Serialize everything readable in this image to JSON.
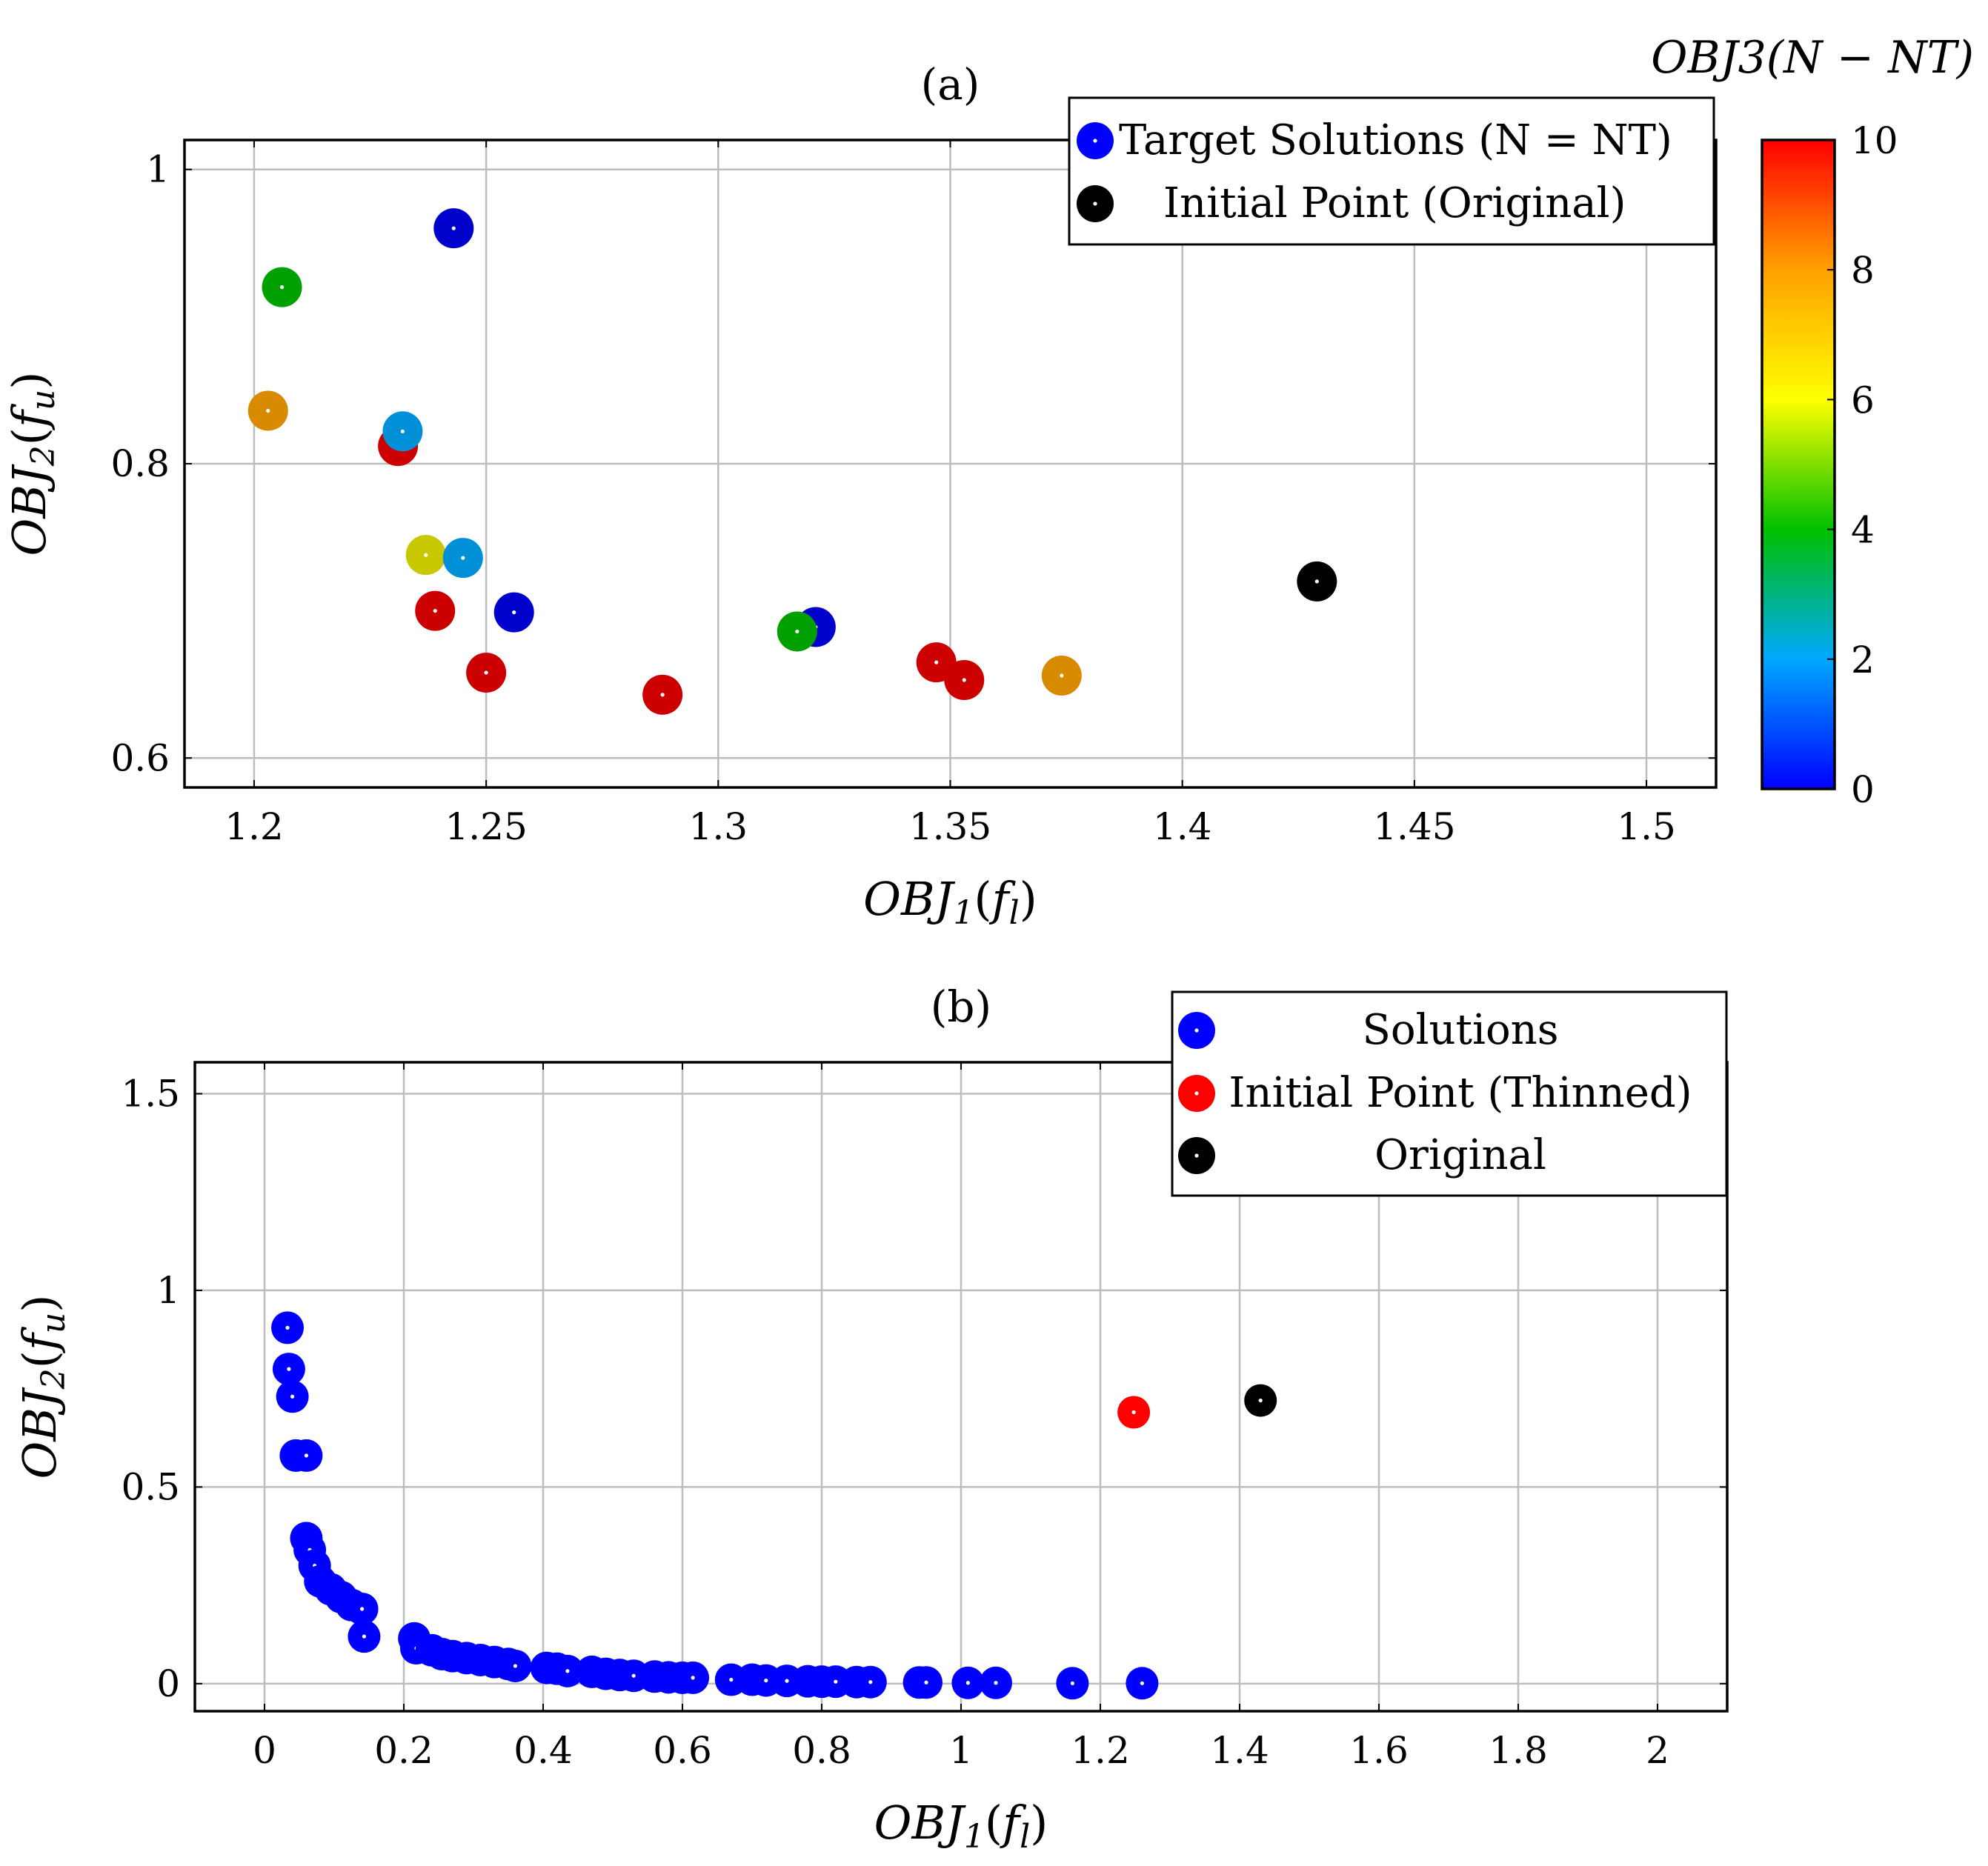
{
  "chart_data": [
    {
      "id": "a",
      "type": "scatter",
      "title": "(a)",
      "xlabel": "OBJ1(fl)",
      "ylabel": "OBJ2(fu)",
      "xlim": [
        1.185,
        1.515
      ],
      "ylim": [
        0.58,
        1.02
      ],
      "xticks": [
        1.2,
        1.25,
        1.3,
        1.35,
        1.4,
        1.45,
        1.5
      ],
      "xtick_labels": [
        "1.2",
        "1.25",
        "1.3",
        "1.35",
        "1.4",
        "1.45",
        "1.5"
      ],
      "yticks": [
        0.6,
        0.8,
        1.0
      ],
      "ytick_labels": [
        "0.6",
        "0.8",
        "1"
      ],
      "colorbar": {
        "title": "OBJ3(N − NT)",
        "range": [
          0,
          10
        ],
        "ticks": [
          0,
          2,
          4,
          6,
          8,
          10
        ],
        "tick_labels": [
          "0",
          "2",
          "4",
          "6",
          "8",
          "10"
        ],
        "stops": [
          "#0000ff",
          "#00a8ff",
          "#00c000",
          "#ffff00",
          "#ffa000",
          "#ff0000"
        ]
      },
      "legend": {
        "placement": "top-right",
        "entries": [
          {
            "label": "Target Solutions (N = NT)",
            "color": "#0000ff"
          },
          {
            "label": "Initial Point (Original)",
            "color": "#000000"
          }
        ]
      },
      "series": [
        {
          "name": "Target Solutions (N = NT)",
          "points": [
            {
              "x": 1.243,
              "y": 0.96,
              "c": 0,
              "color": "#0000cc"
            },
            {
              "x": 1.206,
              "y": 0.92,
              "c": 4,
              "color": "#00a000"
            },
            {
              "x": 1.203,
              "y": 0.836,
              "c": 8,
              "color": "#d88a00"
            },
            {
              "x": 1.231,
              "y": 0.812,
              "c": 10,
              "color": "#cc0000"
            },
            {
              "x": 1.232,
              "y": 0.822,
              "c": 2,
              "color": "#0090d8"
            },
            {
              "x": 1.237,
              "y": 0.738,
              "c": 6,
              "color": "#c8c800"
            },
            {
              "x": 1.245,
              "y": 0.736,
              "c": 2,
              "color": "#0090d8"
            },
            {
              "x": 1.239,
              "y": 0.7,
              "c": 10,
              "color": "#cc0000"
            },
            {
              "x": 1.256,
              "y": 0.699,
              "c": 0,
              "color": "#0000cc"
            },
            {
              "x": 1.25,
              "y": 0.658,
              "c": 10,
              "color": "#cc0000"
            },
            {
              "x": 1.288,
              "y": 0.643,
              "c": 10,
              "color": "#cc0000"
            },
            {
              "x": 1.321,
              "y": 0.689,
              "c": 0,
              "color": "#0000cc"
            },
            {
              "x": 1.317,
              "y": 0.686,
              "c": 4,
              "color": "#00a000"
            },
            {
              "x": 1.347,
              "y": 0.665,
              "c": 10,
              "color": "#cc0000"
            },
            {
              "x": 1.353,
              "y": 0.653,
              "c": 10,
              "color": "#cc0000"
            },
            {
              "x": 1.374,
              "y": 0.656,
              "c": 8,
              "color": "#d88a00"
            }
          ]
        },
        {
          "name": "Initial Point (Original)",
          "points": [
            {
              "x": 1.429,
              "y": 0.72,
              "color": "#000000"
            }
          ]
        }
      ]
    },
    {
      "id": "b",
      "type": "scatter",
      "title": "(b)",
      "xlabel": "OBJ1(fl)",
      "ylabel": "OBJ2(fu)",
      "xlim": [
        -0.1,
        2.1
      ],
      "ylim": [
        -0.07,
        1.58
      ],
      "xticks": [
        0,
        0.2,
        0.4,
        0.6,
        0.8,
        1,
        1.2,
        1.4,
        1.6,
        1.8,
        2
      ],
      "xtick_labels": [
        "0",
        "0.2",
        "0.4",
        "0.6",
        "0.8",
        "1",
        "1.2",
        "1.4",
        "1.6",
        "1.8",
        "2"
      ],
      "yticks": [
        0,
        0.5,
        1,
        1.5
      ],
      "ytick_labels": [
        "0",
        "0.5",
        "1",
        "1.5"
      ],
      "legend": {
        "placement": "top-right",
        "entries": [
          {
            "label": "Solutions",
            "color": "#0000ff"
          },
          {
            "label": "Initial Point (Thinned)",
            "color": "#ff0000"
          },
          {
            "label": "Original",
            "color": "#000000"
          }
        ]
      },
      "series": [
        {
          "name": "Solutions",
          "color": "#0000ff",
          "points": [
            [
              0.033,
              0.905
            ],
            [
              0.035,
              0.8
            ],
            [
              0.04,
              0.73
            ],
            [
              0.045,
              0.58
            ],
            [
              0.06,
              0.58
            ],
            [
              0.06,
              0.37
            ],
            [
              0.065,
              0.34
            ],
            [
              0.072,
              0.3
            ],
            [
              0.08,
              0.26
            ],
            [
              0.095,
              0.24
            ],
            [
              0.11,
              0.22
            ],
            [
              0.125,
              0.2
            ],
            [
              0.14,
              0.19
            ],
            [
              0.143,
              0.12
            ],
            [
              0.215,
              0.115
            ],
            [
              0.218,
              0.09
            ],
            [
              0.24,
              0.085
            ],
            [
              0.255,
              0.075
            ],
            [
              0.27,
              0.07
            ],
            [
              0.29,
              0.065
            ],
            [
              0.31,
              0.06
            ],
            [
              0.33,
              0.055
            ],
            [
              0.35,
              0.05
            ],
            [
              0.36,
              0.045
            ],
            [
              0.405,
              0.04
            ],
            [
              0.42,
              0.038
            ],
            [
              0.435,
              0.032
            ],
            [
              0.47,
              0.03
            ],
            [
              0.49,
              0.025
            ],
            [
              0.51,
              0.022
            ],
            [
              0.53,
              0.02
            ],
            [
              0.56,
              0.018
            ],
            [
              0.58,
              0.016
            ],
            [
              0.6,
              0.015
            ],
            [
              0.615,
              0.015
            ],
            [
              0.67,
              0.01
            ],
            [
              0.7,
              0.01
            ],
            [
              0.72,
              0.008
            ],
            [
              0.75,
              0.007
            ],
            [
              0.78,
              0.006
            ],
            [
              0.8,
              0.005
            ],
            [
              0.82,
              0.005
            ],
            [
              0.85,
              0.004
            ],
            [
              0.87,
              0.004
            ],
            [
              0.94,
              0.003
            ],
            [
              0.95,
              0.003
            ],
            [
              1.01,
              0.002
            ],
            [
              1.05,
              0.002
            ],
            [
              1.16,
              0.001
            ],
            [
              1.26,
              0.001
            ]
          ]
        },
        {
          "name": "Initial Point (Thinned)",
          "color": "#ff0000",
          "points": [
            [
              1.248,
              0.69
            ]
          ]
        },
        {
          "name": "Original",
          "color": "#000000",
          "points": [
            [
              1.43,
              0.72
            ]
          ]
        }
      ]
    }
  ]
}
